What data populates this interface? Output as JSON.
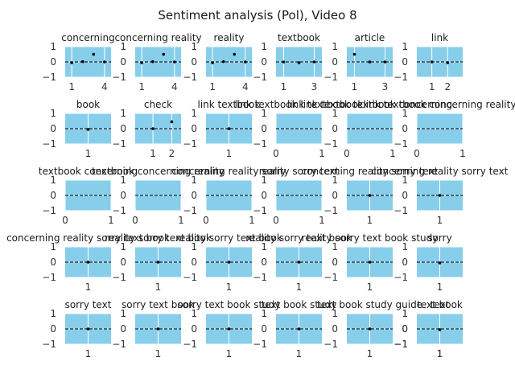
{
  "title": "Sentiment analysis (Pol), Video 8",
  "colors": {
    "panel": "#87ceeb",
    "grid": "#ffffff",
    "point": "#000000",
    "zero_line": "#000000",
    "text": "#333333"
  },
  "chart_data": {
    "type": "scatter",
    "grid": true,
    "zero_line": "dashed",
    "ylim": [
      -1,
      1
    ],
    "yticks": [
      -1,
      0,
      1
    ],
    "panels": [
      {
        "title": "concerning",
        "xlim": [
          0.4,
          4.6
        ],
        "xticks": [
          1,
          4
        ],
        "points": [
          [
            1,
            -0.05
          ],
          [
            2,
            0.02
          ],
          [
            3,
            0.5
          ],
          [
            4,
            0
          ]
        ]
      },
      {
        "title": "concerning reality",
        "xlim": [
          0.4,
          4.6
        ],
        "xticks": [
          1,
          4
        ],
        "points": [
          [
            1,
            -0.05
          ],
          [
            2,
            0.02
          ],
          [
            3,
            0.5
          ],
          [
            4,
            0
          ]
        ]
      },
      {
        "title": "reality",
        "xlim": [
          0.4,
          4.6
        ],
        "xticks": [
          1,
          4
        ],
        "points": [
          [
            1,
            -0.05
          ],
          [
            2,
            0.02
          ],
          [
            3,
            0.5
          ],
          [
            4,
            0
          ]
        ]
      },
      {
        "title": "textbook",
        "xlim": [
          0.5,
          3.5
        ],
        "xticks": [
          1,
          3
        ],
        "points": [
          [
            1,
            0
          ],
          [
            2,
            -0.05
          ],
          [
            3,
            0
          ]
        ]
      },
      {
        "title": "article",
        "xlim": [
          0.5,
          3.5
        ],
        "xticks": [
          1,
          3
        ],
        "points": [
          [
            1,
            0.5
          ],
          [
            2,
            0
          ],
          [
            3,
            0
          ]
        ]
      },
      {
        "title": "link",
        "xlim": [
          0.05,
          2.95
        ],
        "xticks": [
          1,
          2
        ],
        "points": [
          [
            1,
            0
          ],
          [
            2,
            -0.05
          ]
        ]
      },
      {
        "title": "book",
        "xlim": [
          0,
          2
        ],
        "xticks": [
          1
        ],
        "points": [
          [
            1,
            -0.05
          ]
        ]
      },
      {
        "title": "check",
        "xlim": [
          0.05,
          2.5
        ],
        "xticks": [
          1,
          2
        ],
        "points": [
          [
            1,
            0
          ],
          [
            2,
            0.45
          ]
        ]
      },
      {
        "title": "link textbook",
        "xlim": [
          0,
          2
        ],
        "xticks": [
          1
        ],
        "points": [
          [
            1,
            0
          ]
        ]
      },
      {
        "title": "link textbook link textbook",
        "xlim": [
          0,
          1
        ],
        "xticks": [
          0,
          1
        ],
        "points": []
      },
      {
        "title": "link textbook textbook concerning",
        "xlim": [
          0,
          1
        ],
        "xticks": [
          0,
          1
        ],
        "points": []
      },
      {
        "title": "link textbook concerning reality",
        "xlim": [
          0,
          1
        ],
        "xticks": [
          0,
          1
        ],
        "points": []
      },
      {
        "title": "textbook concerning",
        "xlim": [
          0,
          1
        ],
        "xticks": [
          0,
          1
        ],
        "points": []
      },
      {
        "title": "textbook concerning reality",
        "xlim": [
          0,
          1
        ],
        "xticks": [
          0,
          1
        ],
        "points": []
      },
      {
        "title": "concerning reality sorry",
        "xlim": [
          0,
          1
        ],
        "xticks": [
          0,
          1
        ],
        "points": []
      },
      {
        "title": "reality sorry text",
        "xlim": [
          0,
          1
        ],
        "xticks": [
          0,
          1
        ],
        "points": []
      },
      {
        "title": "concerning reality sorry text",
        "xlim": [
          0,
          2
        ],
        "xticks": [
          1
        ],
        "points": [
          [
            1,
            0
          ]
        ]
      },
      {
        "title": "concerning reality sorry text",
        "xlim": [
          0,
          2
        ],
        "xticks": [
          1
        ],
        "points": [
          [
            1,
            0
          ]
        ]
      },
      {
        "title": "concerning reality sorry text book",
        "xlim": [
          0,
          2
        ],
        "xticks": [
          1
        ],
        "points": [
          [
            1,
            0
          ]
        ]
      },
      {
        "title": "reality sorry text book",
        "xlim": [
          0,
          2
        ],
        "xticks": [
          1
        ],
        "points": [
          [
            1,
            0
          ]
        ]
      },
      {
        "title": "reality sorry text book",
        "xlim": [
          0,
          2
        ],
        "xticks": [
          1
        ],
        "points": [
          [
            1,
            0
          ]
        ]
      },
      {
        "title": "reality sorry text book",
        "xlim": [
          0,
          2
        ],
        "xticks": [
          1
        ],
        "points": [
          [
            1,
            0
          ]
        ]
      },
      {
        "title": "reality sorry text book study",
        "xlim": [
          0,
          2
        ],
        "xticks": [
          1
        ],
        "points": [
          [
            1,
            0
          ]
        ]
      },
      {
        "title": "sorry",
        "xlim": [
          0,
          2
        ],
        "xticks": [
          1
        ],
        "points": [
          [
            1,
            -0.05
          ]
        ]
      },
      {
        "title": "sorry text",
        "xlim": [
          0,
          2
        ],
        "xticks": [
          1
        ],
        "points": [
          [
            1,
            0
          ]
        ]
      },
      {
        "title": "sorry text book",
        "xlim": [
          0,
          2
        ],
        "xticks": [
          1
        ],
        "points": [
          [
            1,
            0
          ]
        ]
      },
      {
        "title": "sorry text book study",
        "xlim": [
          0,
          2
        ],
        "xticks": [
          1
        ],
        "points": [
          [
            1,
            0
          ]
        ]
      },
      {
        "title": "text book study",
        "xlim": [
          0,
          2
        ],
        "xticks": [
          1
        ],
        "points": [
          [
            1,
            0
          ]
        ]
      },
      {
        "title": "text book study guide",
        "xlim": [
          0,
          2
        ],
        "xticks": [
          1
        ],
        "points": [
          [
            1,
            0
          ]
        ]
      },
      {
        "title": "text",
        "xlim": [
          0,
          2
        ],
        "xticks": [
          1
        ],
        "points": [
          [
            1,
            -0.05
          ]
        ]
      },
      {
        "title": "text book",
        "xlim": [
          0,
          2
        ],
        "xticks": [
          1
        ],
        "points": [
          [
            1,
            -0.05
          ]
        ]
      }
    ]
  }
}
